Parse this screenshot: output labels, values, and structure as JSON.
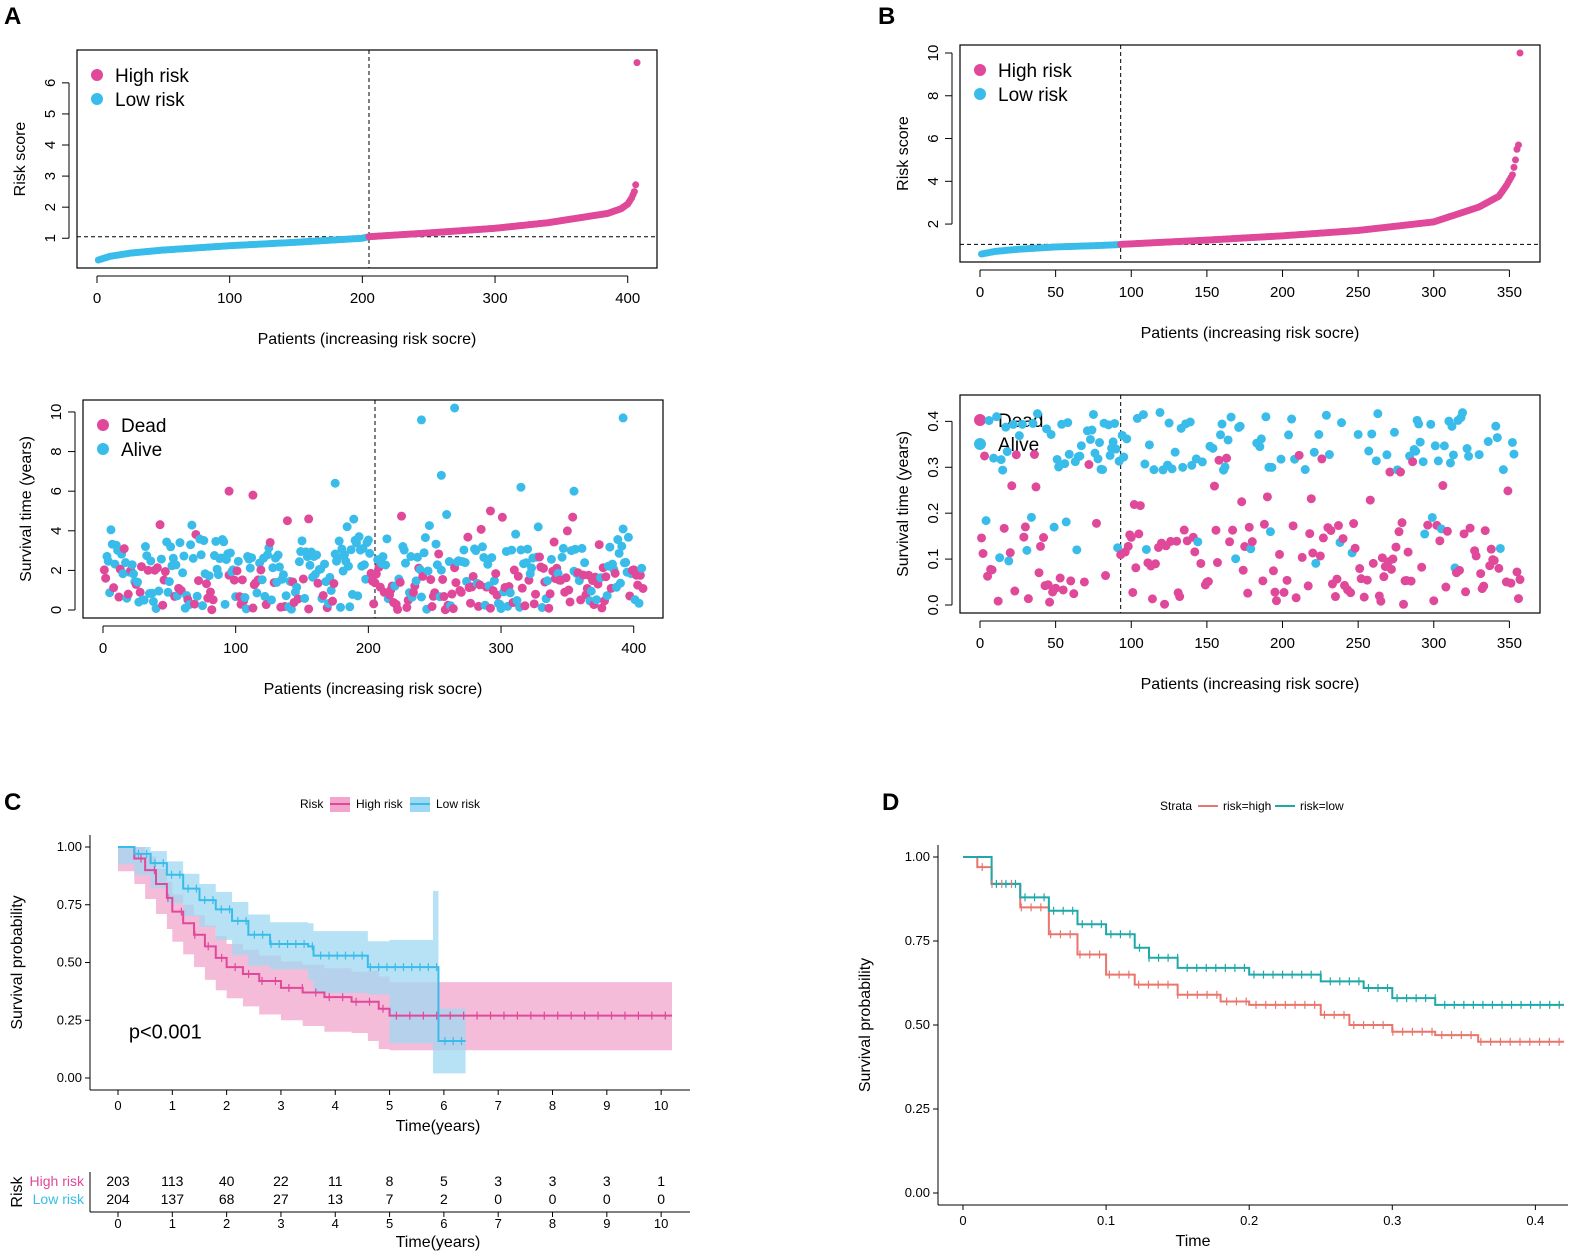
{
  "colors": {
    "high": "#E0489A",
    "low": "#39BCEA",
    "ribbon_high": "#F2A6CD",
    "ribbon_low": "#9FD8F2",
    "d_high": "#E9756C",
    "d_low": "#1FA8A8"
  },
  "chart_data": [
    {
      "panel": "A",
      "type": "scatter",
      "title": "",
      "xlabel": "Patients (increasing risk socre)",
      "ylabel": "Risk score",
      "xlim": [
        0,
        407
      ],
      "ylim": [
        0.3,
        6.8
      ],
      "xticks": [
        "0",
        "100",
        "200",
        "300",
        "400"
      ],
      "yticks": [
        "1",
        "2",
        "3",
        "4",
        "5",
        "6"
      ],
      "legend": [
        "High risk",
        "Low risk"
      ],
      "n": 407,
      "cutoff_index": 205,
      "cutoff_value": 1.05,
      "series": [
        {
          "name": "Low risk",
          "x": [
            1,
            10,
            25,
            50,
            100,
            150,
            200,
            204
          ],
          "y": [
            0.3,
            0.42,
            0.52,
            0.62,
            0.76,
            0.87,
            1.0,
            1.04
          ]
        },
        {
          "name": "High risk",
          "x": [
            205,
            250,
            300,
            340,
            370,
            385,
            395,
            400,
            403,
            405,
            406,
            407
          ],
          "y": [
            1.05,
            1.17,
            1.32,
            1.5,
            1.7,
            1.8,
            1.95,
            2.1,
            2.3,
            2.5,
            2.72,
            6.65
          ]
        }
      ]
    },
    {
      "panel": "A",
      "type": "scatter",
      "title": "",
      "xlabel": "Patients (increasing risk socre)",
      "ylabel": "Survival time (years)",
      "xlim": [
        0,
        407
      ],
      "ylim": [
        0,
        10.2
      ],
      "xticks": [
        "0",
        "100",
        "200",
        "300",
        "400"
      ],
      "yticks": [
        "0",
        "2",
        "4",
        "6",
        "8",
        "10"
      ],
      "legend": [
        "Dead",
        "Alive"
      ],
      "cutoff_index": 205,
      "highlight_points": [
        {
          "x": 95,
          "y": 6.0,
          "status": "Dead"
        },
        {
          "x": 113,
          "y": 5.8,
          "status": "Dead"
        },
        {
          "x": 155,
          "y": 4.6,
          "status": "Dead"
        },
        {
          "x": 240,
          "y": 9.6,
          "status": "Alive"
        },
        {
          "x": 265,
          "y": 10.2,
          "status": "Alive"
        },
        {
          "x": 255,
          "y": 6.8,
          "status": "Alive"
        },
        {
          "x": 315,
          "y": 6.2,
          "status": "Alive"
        },
        {
          "x": 392,
          "y": 9.7,
          "status": "Alive"
        },
        {
          "x": 355,
          "y": 6.0,
          "status": "Alive"
        },
        {
          "x": 175,
          "y": 6.4,
          "status": "Alive"
        },
        {
          "x": 292,
          "y": 5.0,
          "status": "Dead"
        }
      ]
    },
    {
      "panel": "B",
      "type": "scatter",
      "title": "",
      "xlabel": "Patients (increasing risk socre)",
      "ylabel": "Risk score",
      "xlim": [
        0,
        357
      ],
      "ylim": [
        0.6,
        10
      ],
      "xticks": [
        "0",
        "50",
        "100",
        "150",
        "200",
        "250",
        "300",
        "350"
      ],
      "yticks": [
        "2",
        "4",
        "6",
        "8",
        "10"
      ],
      "legend": [
        "High risk",
        "Low risk"
      ],
      "n": 357,
      "cutoff_index": 93,
      "cutoff_value": 1.05,
      "series": [
        {
          "name": "Low risk",
          "x": [
            1,
            10,
            25,
            50,
            80,
            92
          ],
          "y": [
            0.6,
            0.72,
            0.82,
            0.93,
            1.0,
            1.04
          ]
        },
        {
          "name": "High risk",
          "x": [
            93,
            150,
            200,
            250,
            300,
            330,
            343,
            348,
            352,
            354,
            355,
            356,
            357
          ],
          "y": [
            1.05,
            1.25,
            1.45,
            1.7,
            2.1,
            2.8,
            3.3,
            3.8,
            4.3,
            5.0,
            5.5,
            5.7,
            10.0
          ]
        }
      ]
    },
    {
      "panel": "B",
      "type": "scatter",
      "title": "",
      "xlabel": "Patients (increasing risk socre)",
      "ylabel": "Survival time (years)",
      "xlim": [
        0,
        357
      ],
      "ylim": [
        0,
        0.44
      ],
      "xticks": [
        "0",
        "50",
        "100",
        "150",
        "200",
        "250",
        "300",
        "350"
      ],
      "yticks": [
        "0.0",
        "0.1",
        "0.2",
        "0.3",
        "0.4"
      ],
      "legend": [
        "Dead",
        "Alive"
      ],
      "cutoff_index": 93
    },
    {
      "panel": "C",
      "type": "line",
      "title": "",
      "xlabel": "Time(years)",
      "ylabel": "Survival probability",
      "xlim": [
        0,
        10.2
      ],
      "ylim": [
        0,
        1
      ],
      "xticks": [
        "0",
        "1",
        "2",
        "3",
        "4",
        "5",
        "6",
        "7",
        "8",
        "9",
        "10"
      ],
      "yticks": [
        "0.00",
        "0.25",
        "0.50",
        "0.75",
        "1.00"
      ],
      "legend_title": "Risk",
      "legend": [
        "High risk",
        "Low risk"
      ],
      "annotation": "p<0.001",
      "series": [
        {
          "name": "High risk",
          "x": [
            0,
            0.3,
            0.5,
            0.7,
            0.9,
            1.0,
            1.2,
            1.4,
            1.6,
            1.8,
            2.0,
            2.3,
            2.6,
            3.0,
            3.4,
            3.8,
            4.3,
            4.6,
            4.8,
            5.0,
            10.2
          ],
          "y": [
            1.0,
            0.95,
            0.9,
            0.84,
            0.78,
            0.72,
            0.67,
            0.62,
            0.57,
            0.52,
            0.48,
            0.45,
            0.42,
            0.39,
            0.37,
            0.35,
            0.33,
            0.33,
            0.3,
            0.27,
            0.27
          ]
        },
        {
          "name": "Low risk",
          "x": [
            0,
            0.3,
            0.6,
            0.9,
            1.2,
            1.5,
            1.8,
            2.1,
            2.4,
            2.8,
            3.5,
            3.6,
            4.6,
            5.0,
            5.8,
            5.9,
            6.4
          ],
          "y": [
            1.0,
            0.97,
            0.93,
            0.88,
            0.82,
            0.77,
            0.73,
            0.68,
            0.62,
            0.58,
            0.57,
            0.53,
            0.48,
            0.48,
            0.48,
            0.16,
            0.16
          ]
        }
      ],
      "risk_table": {
        "title": "Risk",
        "xlabel": "Time(years)",
        "rows": [
          {
            "label": "High risk",
            "values": [
              "203",
              "113",
              "40",
              "22",
              "11",
              "8",
              "5",
              "3",
              "3",
              "3",
              "1"
            ]
          },
          {
            "label": "Low risk",
            "values": [
              "204",
              "137",
              "68",
              "27",
              "13",
              "7",
              "2",
              "0",
              "0",
              "0",
              "0"
            ]
          }
        ]
      }
    },
    {
      "panel": "D",
      "type": "line",
      "title": "",
      "xlabel": "Time",
      "ylabel": "Survival probability",
      "xlim": [
        0,
        0.42
      ],
      "ylim": [
        0,
        1
      ],
      "xticks": [
        "0",
        "0.1",
        "0.2",
        "0.3",
        "0.4"
      ],
      "yticks": [
        "0.00",
        "0.25",
        "0.50",
        "0.75",
        "1.00"
      ],
      "legend_title": "Strata",
      "legend": [
        "risk=high",
        "risk=low"
      ],
      "series": [
        {
          "name": "risk=high",
          "x": [
            0,
            0.01,
            0.02,
            0.04,
            0.06,
            0.08,
            0.1,
            0.12,
            0.15,
            0.18,
            0.2,
            0.25,
            0.27,
            0.3,
            0.33,
            0.36,
            0.42
          ],
          "y": [
            1.0,
            0.97,
            0.92,
            0.85,
            0.77,
            0.71,
            0.65,
            0.62,
            0.59,
            0.57,
            0.56,
            0.53,
            0.5,
            0.48,
            0.47,
            0.45,
            0.45
          ]
        },
        {
          "name": "risk=low",
          "x": [
            0,
            0.02,
            0.04,
            0.06,
            0.08,
            0.1,
            0.12,
            0.13,
            0.15,
            0.2,
            0.25,
            0.28,
            0.3,
            0.33,
            0.42
          ],
          "y": [
            1.0,
            0.92,
            0.88,
            0.84,
            0.8,
            0.77,
            0.73,
            0.7,
            0.67,
            0.65,
            0.63,
            0.61,
            0.58,
            0.56,
            0.56
          ]
        }
      ]
    }
  ],
  "labels": {
    "panel_a": "A",
    "panel_b": "B",
    "panel_c": "C",
    "panel_d": "D"
  }
}
